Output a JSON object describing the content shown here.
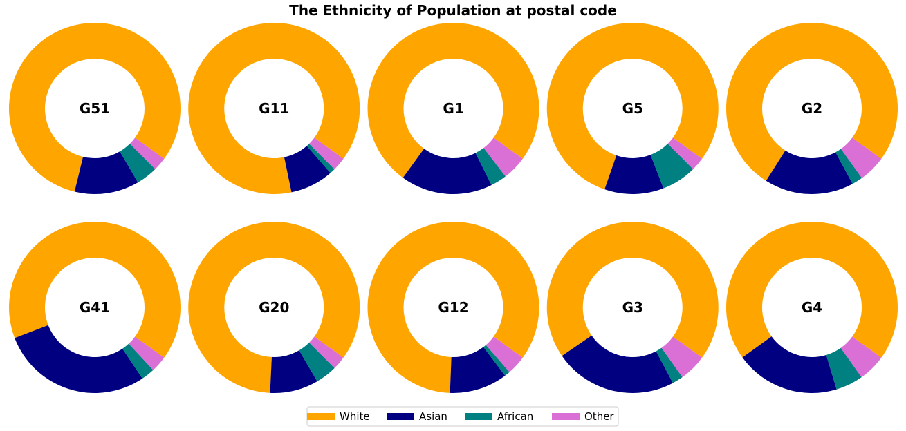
{
  "chart_data": {
    "type": "pie",
    "subtype": "donut",
    "title": "The Ethnicity of Population at postal code",
    "categories": [
      "White",
      "Asian",
      "African",
      "Other"
    ],
    "colors": {
      "White": "#FFA500",
      "Asian": "#000080",
      "African": "#008080",
      "Other": "#DA70D6"
    },
    "charts": [
      {
        "label": "G51",
        "values": [
          80.0,
          12.0,
          4.0,
          2.5
        ]
      },
      {
        "label": "G11",
        "values": [
          86.5,
          8.0,
          1.0,
          2.5
        ]
      },
      {
        "label": "G1",
        "values": [
          73.5,
          17.0,
          3.0,
          4.5
        ]
      },
      {
        "label": "G5",
        "values": [
          78.5,
          11.0,
          6.5,
          2.5
        ]
      },
      {
        "label": "G2",
        "values": [
          74.5,
          16.5,
          2.0,
          5.0
        ]
      },
      {
        "label": "G41",
        "values": [
          64.5,
          28.0,
          2.5,
          3.0
        ]
      },
      {
        "label": "G20",
        "values": [
          83.0,
          9.0,
          4.0,
          2.5
        ]
      },
      {
        "label": "G12",
        "values": [
          81.0,
          10.5,
          1.0,
          3.5
        ]
      },
      {
        "label": "G3",
        "values": [
          67.5,
          22.5,
          2.0,
          5.0
        ]
      },
      {
        "label": "G4",
        "values": [
          67.5,
          19.0,
          5.0,
          5.0
        ]
      }
    ],
    "legend": {
      "placement": "bottom-center",
      "entries": [
        "White",
        "Asian",
        "African",
        "Other"
      ]
    }
  }
}
